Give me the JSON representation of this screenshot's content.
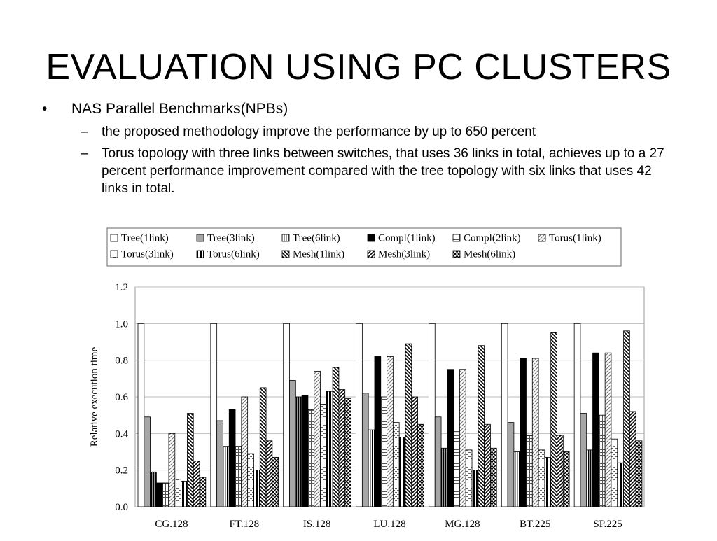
{
  "slide": {
    "title": "EVALUATION USING PC CLUSTERS",
    "bullet": "NAS Parallel Benchmarks(NPBs)",
    "bullet_marker": "•",
    "sub_marker": "–",
    "sub_bullets": [
      "the proposed methodology improve the performance by up to 650 percent",
      "Torus topology with three links between switches, that uses 36 links in total, achieves up to a 27 percent performance improvement compared with the tree topology with six links that uses 42 links in total."
    ]
  },
  "chart_data": {
    "type": "bar",
    "ylabel": "Relative execution time",
    "xlabel": "",
    "ylim": [
      0,
      1.2
    ],
    "yticks": [
      "0.0",
      "0.2",
      "0.4",
      "0.6",
      "0.8",
      "1.0",
      "1.2"
    ],
    "grid": true,
    "legend_position": "top",
    "categories": [
      "CG.128",
      "FT.128",
      "IS.128",
      "LU.128",
      "MG.128",
      "BT.225",
      "SP.225"
    ],
    "series": [
      {
        "name": "Tree(1link)",
        "pattern": "white",
        "values": [
          1.0,
          1.0,
          1.0,
          1.0,
          1.0,
          1.0,
          1.0
        ]
      },
      {
        "name": "Tree(3link)",
        "pattern": "gray",
        "values": [
          0.49,
          0.47,
          0.69,
          0.62,
          0.49,
          0.46,
          0.51
        ]
      },
      {
        "name": "Tree(6link)",
        "pattern": "vstripes",
        "values": [
          0.19,
          0.33,
          0.6,
          0.42,
          0.32,
          0.3,
          0.31
        ]
      },
      {
        "name": "Compl(1link)",
        "pattern": "black",
        "values": [
          0.13,
          0.53,
          0.61,
          0.82,
          0.75,
          0.81,
          0.84
        ]
      },
      {
        "name": "Compl(2link)",
        "pattern": "grid",
        "values": [
          0.13,
          0.33,
          0.53,
          0.6,
          0.41,
          0.39,
          0.5
        ]
      },
      {
        "name": "Torus(1link)",
        "pattern": "diag",
        "values": [
          0.4,
          0.6,
          0.74,
          0.82,
          0.75,
          0.81,
          0.84
        ]
      },
      {
        "name": "Torus(3link)",
        "pattern": "dashed",
        "values": [
          0.15,
          0.29,
          0.56,
          0.46,
          0.31,
          0.31,
          0.37
        ]
      },
      {
        "name": "Torus(6link)",
        "pattern": "thickv",
        "values": [
          0.14,
          0.2,
          0.63,
          0.38,
          0.2,
          0.27,
          0.24
        ]
      },
      {
        "name": "Mesh(1link)",
        "pattern": "hatchdown",
        "values": [
          0.51,
          0.65,
          0.76,
          0.89,
          0.88,
          0.95,
          0.96
        ]
      },
      {
        "name": "Mesh(3link)",
        "pattern": "hatchup",
        "values": [
          0.25,
          0.36,
          0.64,
          0.6,
          0.45,
          0.39,
          0.52
        ]
      },
      {
        "name": "Mesh(6link)",
        "pattern": "cross",
        "values": [
          0.16,
          0.27,
          0.59,
          0.45,
          0.32,
          0.3,
          0.36
        ]
      }
    ]
  }
}
